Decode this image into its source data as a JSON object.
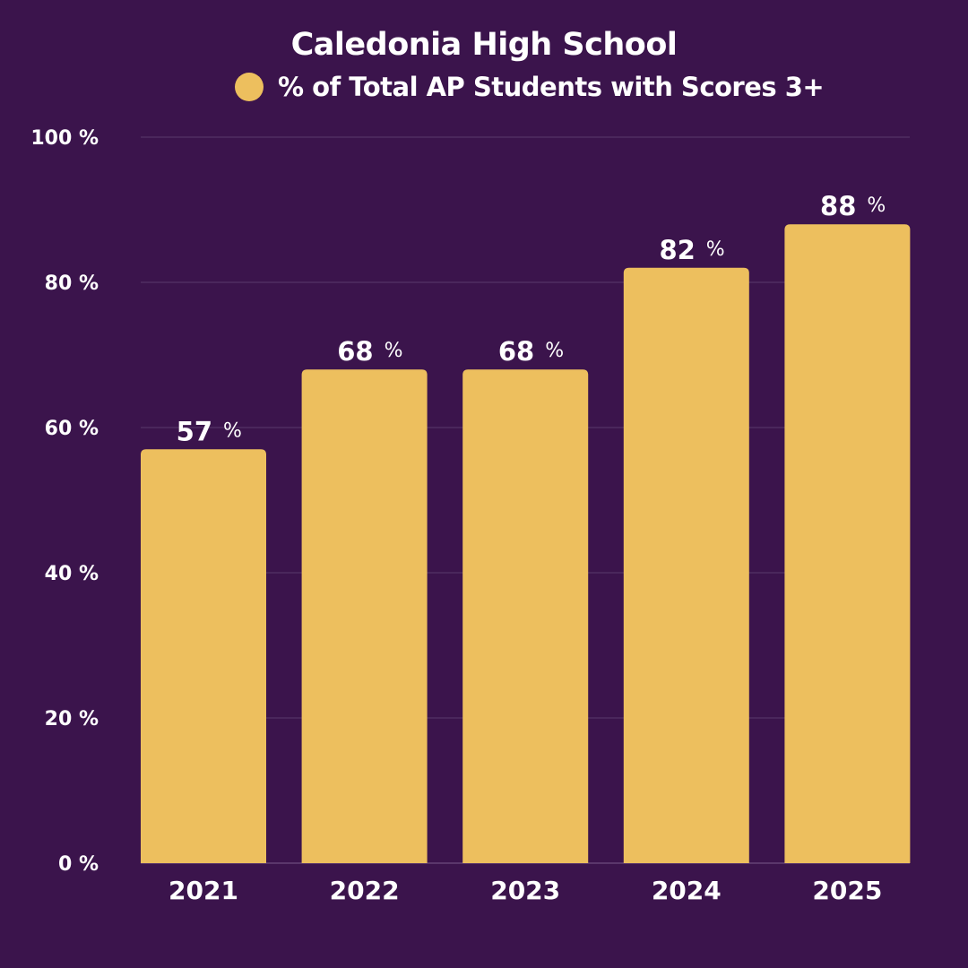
{
  "chart_data": {
    "type": "bar",
    "title": "Caledonia High School",
    "legend": [
      {
        "name": "% of Total AP Students with Scores 3+",
        "color": "#edbf5e"
      }
    ],
    "legend_placement": "top",
    "categories": [
      "2021",
      "2022",
      "2023",
      "2024",
      "2025"
    ],
    "series": [
      {
        "name": "% of Total AP Students with Scores 3+",
        "values": [
          57,
          68,
          68,
          82,
          88
        ]
      }
    ],
    "data_label_suffix": "%",
    "ylim": [
      0,
      100
    ],
    "yticks": [
      0,
      20,
      40,
      60,
      80,
      100
    ],
    "ytick_labels": [
      "0 %",
      "20 %",
      "40 %",
      "60 %",
      "80 %",
      "100 %"
    ],
    "xlabel": "",
    "ylabel": "",
    "grid": true,
    "colors": {
      "background": "#3b144c",
      "bar": "#edbf5e",
      "grid": "#5a3a6b"
    }
  }
}
